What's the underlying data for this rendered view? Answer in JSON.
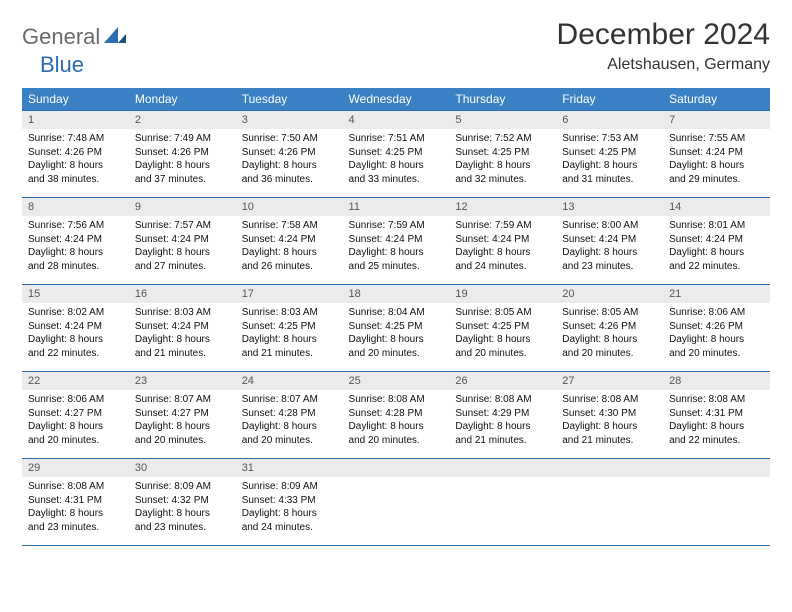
{
  "logo": {
    "part1": "General",
    "part2": "Blue"
  },
  "title": "December 2024",
  "subtitle": "Aletshausen, Germany",
  "colors": {
    "header_bg": "#3a80c4",
    "header_fg": "#ffffff",
    "rule": "#2b6cb0",
    "daynum_bg": "#ebebeb",
    "logo_gray": "#6a6a6a",
    "logo_blue": "#2b6cb0"
  },
  "weekdays": [
    "Sunday",
    "Monday",
    "Tuesday",
    "Wednesday",
    "Thursday",
    "Friday",
    "Saturday"
  ],
  "weeks": [
    [
      {
        "n": "1",
        "sr": "7:48 AM",
        "ss": "4:26 PM",
        "dl": "8 hours and 38 minutes."
      },
      {
        "n": "2",
        "sr": "7:49 AM",
        "ss": "4:26 PM",
        "dl": "8 hours and 37 minutes."
      },
      {
        "n": "3",
        "sr": "7:50 AM",
        "ss": "4:26 PM",
        "dl": "8 hours and 36 minutes."
      },
      {
        "n": "4",
        "sr": "7:51 AM",
        "ss": "4:25 PM",
        "dl": "8 hours and 33 minutes."
      },
      {
        "n": "5",
        "sr": "7:52 AM",
        "ss": "4:25 PM",
        "dl": "8 hours and 32 minutes."
      },
      {
        "n": "6",
        "sr": "7:53 AM",
        "ss": "4:25 PM",
        "dl": "8 hours and 31 minutes."
      },
      {
        "n": "7",
        "sr": "7:55 AM",
        "ss": "4:24 PM",
        "dl": "8 hours and 29 minutes."
      }
    ],
    [
      {
        "n": "8",
        "sr": "7:56 AM",
        "ss": "4:24 PM",
        "dl": "8 hours and 28 minutes."
      },
      {
        "n": "9",
        "sr": "7:57 AM",
        "ss": "4:24 PM",
        "dl": "8 hours and 27 minutes."
      },
      {
        "n": "10",
        "sr": "7:58 AM",
        "ss": "4:24 PM",
        "dl": "8 hours and 26 minutes."
      },
      {
        "n": "11",
        "sr": "7:59 AM",
        "ss": "4:24 PM",
        "dl": "8 hours and 25 minutes."
      },
      {
        "n": "12",
        "sr": "7:59 AM",
        "ss": "4:24 PM",
        "dl": "8 hours and 24 minutes."
      },
      {
        "n": "13",
        "sr": "8:00 AM",
        "ss": "4:24 PM",
        "dl": "8 hours and 23 minutes."
      },
      {
        "n": "14",
        "sr": "8:01 AM",
        "ss": "4:24 PM",
        "dl": "8 hours and 22 minutes."
      }
    ],
    [
      {
        "n": "15",
        "sr": "8:02 AM",
        "ss": "4:24 PM",
        "dl": "8 hours and 22 minutes."
      },
      {
        "n": "16",
        "sr": "8:03 AM",
        "ss": "4:24 PM",
        "dl": "8 hours and 21 minutes."
      },
      {
        "n": "17",
        "sr": "8:03 AM",
        "ss": "4:25 PM",
        "dl": "8 hours and 21 minutes."
      },
      {
        "n": "18",
        "sr": "8:04 AM",
        "ss": "4:25 PM",
        "dl": "8 hours and 20 minutes."
      },
      {
        "n": "19",
        "sr": "8:05 AM",
        "ss": "4:25 PM",
        "dl": "8 hours and 20 minutes."
      },
      {
        "n": "20",
        "sr": "8:05 AM",
        "ss": "4:26 PM",
        "dl": "8 hours and 20 minutes."
      },
      {
        "n": "21",
        "sr": "8:06 AM",
        "ss": "4:26 PM",
        "dl": "8 hours and 20 minutes."
      }
    ],
    [
      {
        "n": "22",
        "sr": "8:06 AM",
        "ss": "4:27 PM",
        "dl": "8 hours and 20 minutes."
      },
      {
        "n": "23",
        "sr": "8:07 AM",
        "ss": "4:27 PM",
        "dl": "8 hours and 20 minutes."
      },
      {
        "n": "24",
        "sr": "8:07 AM",
        "ss": "4:28 PM",
        "dl": "8 hours and 20 minutes."
      },
      {
        "n": "25",
        "sr": "8:08 AM",
        "ss": "4:28 PM",
        "dl": "8 hours and 20 minutes."
      },
      {
        "n": "26",
        "sr": "8:08 AM",
        "ss": "4:29 PM",
        "dl": "8 hours and 21 minutes."
      },
      {
        "n": "27",
        "sr": "8:08 AM",
        "ss": "4:30 PM",
        "dl": "8 hours and 21 minutes."
      },
      {
        "n": "28",
        "sr": "8:08 AM",
        "ss": "4:31 PM",
        "dl": "8 hours and 22 minutes."
      }
    ],
    [
      {
        "n": "29",
        "sr": "8:08 AM",
        "ss": "4:31 PM",
        "dl": "8 hours and 23 minutes."
      },
      {
        "n": "30",
        "sr": "8:09 AM",
        "ss": "4:32 PM",
        "dl": "8 hours and 23 minutes."
      },
      {
        "n": "31",
        "sr": "8:09 AM",
        "ss": "4:33 PM",
        "dl": "8 hours and 24 minutes."
      },
      null,
      null,
      null,
      null
    ]
  ],
  "labels": {
    "sunrise": "Sunrise:",
    "sunset": "Sunset:",
    "daylight": "Daylight:"
  }
}
